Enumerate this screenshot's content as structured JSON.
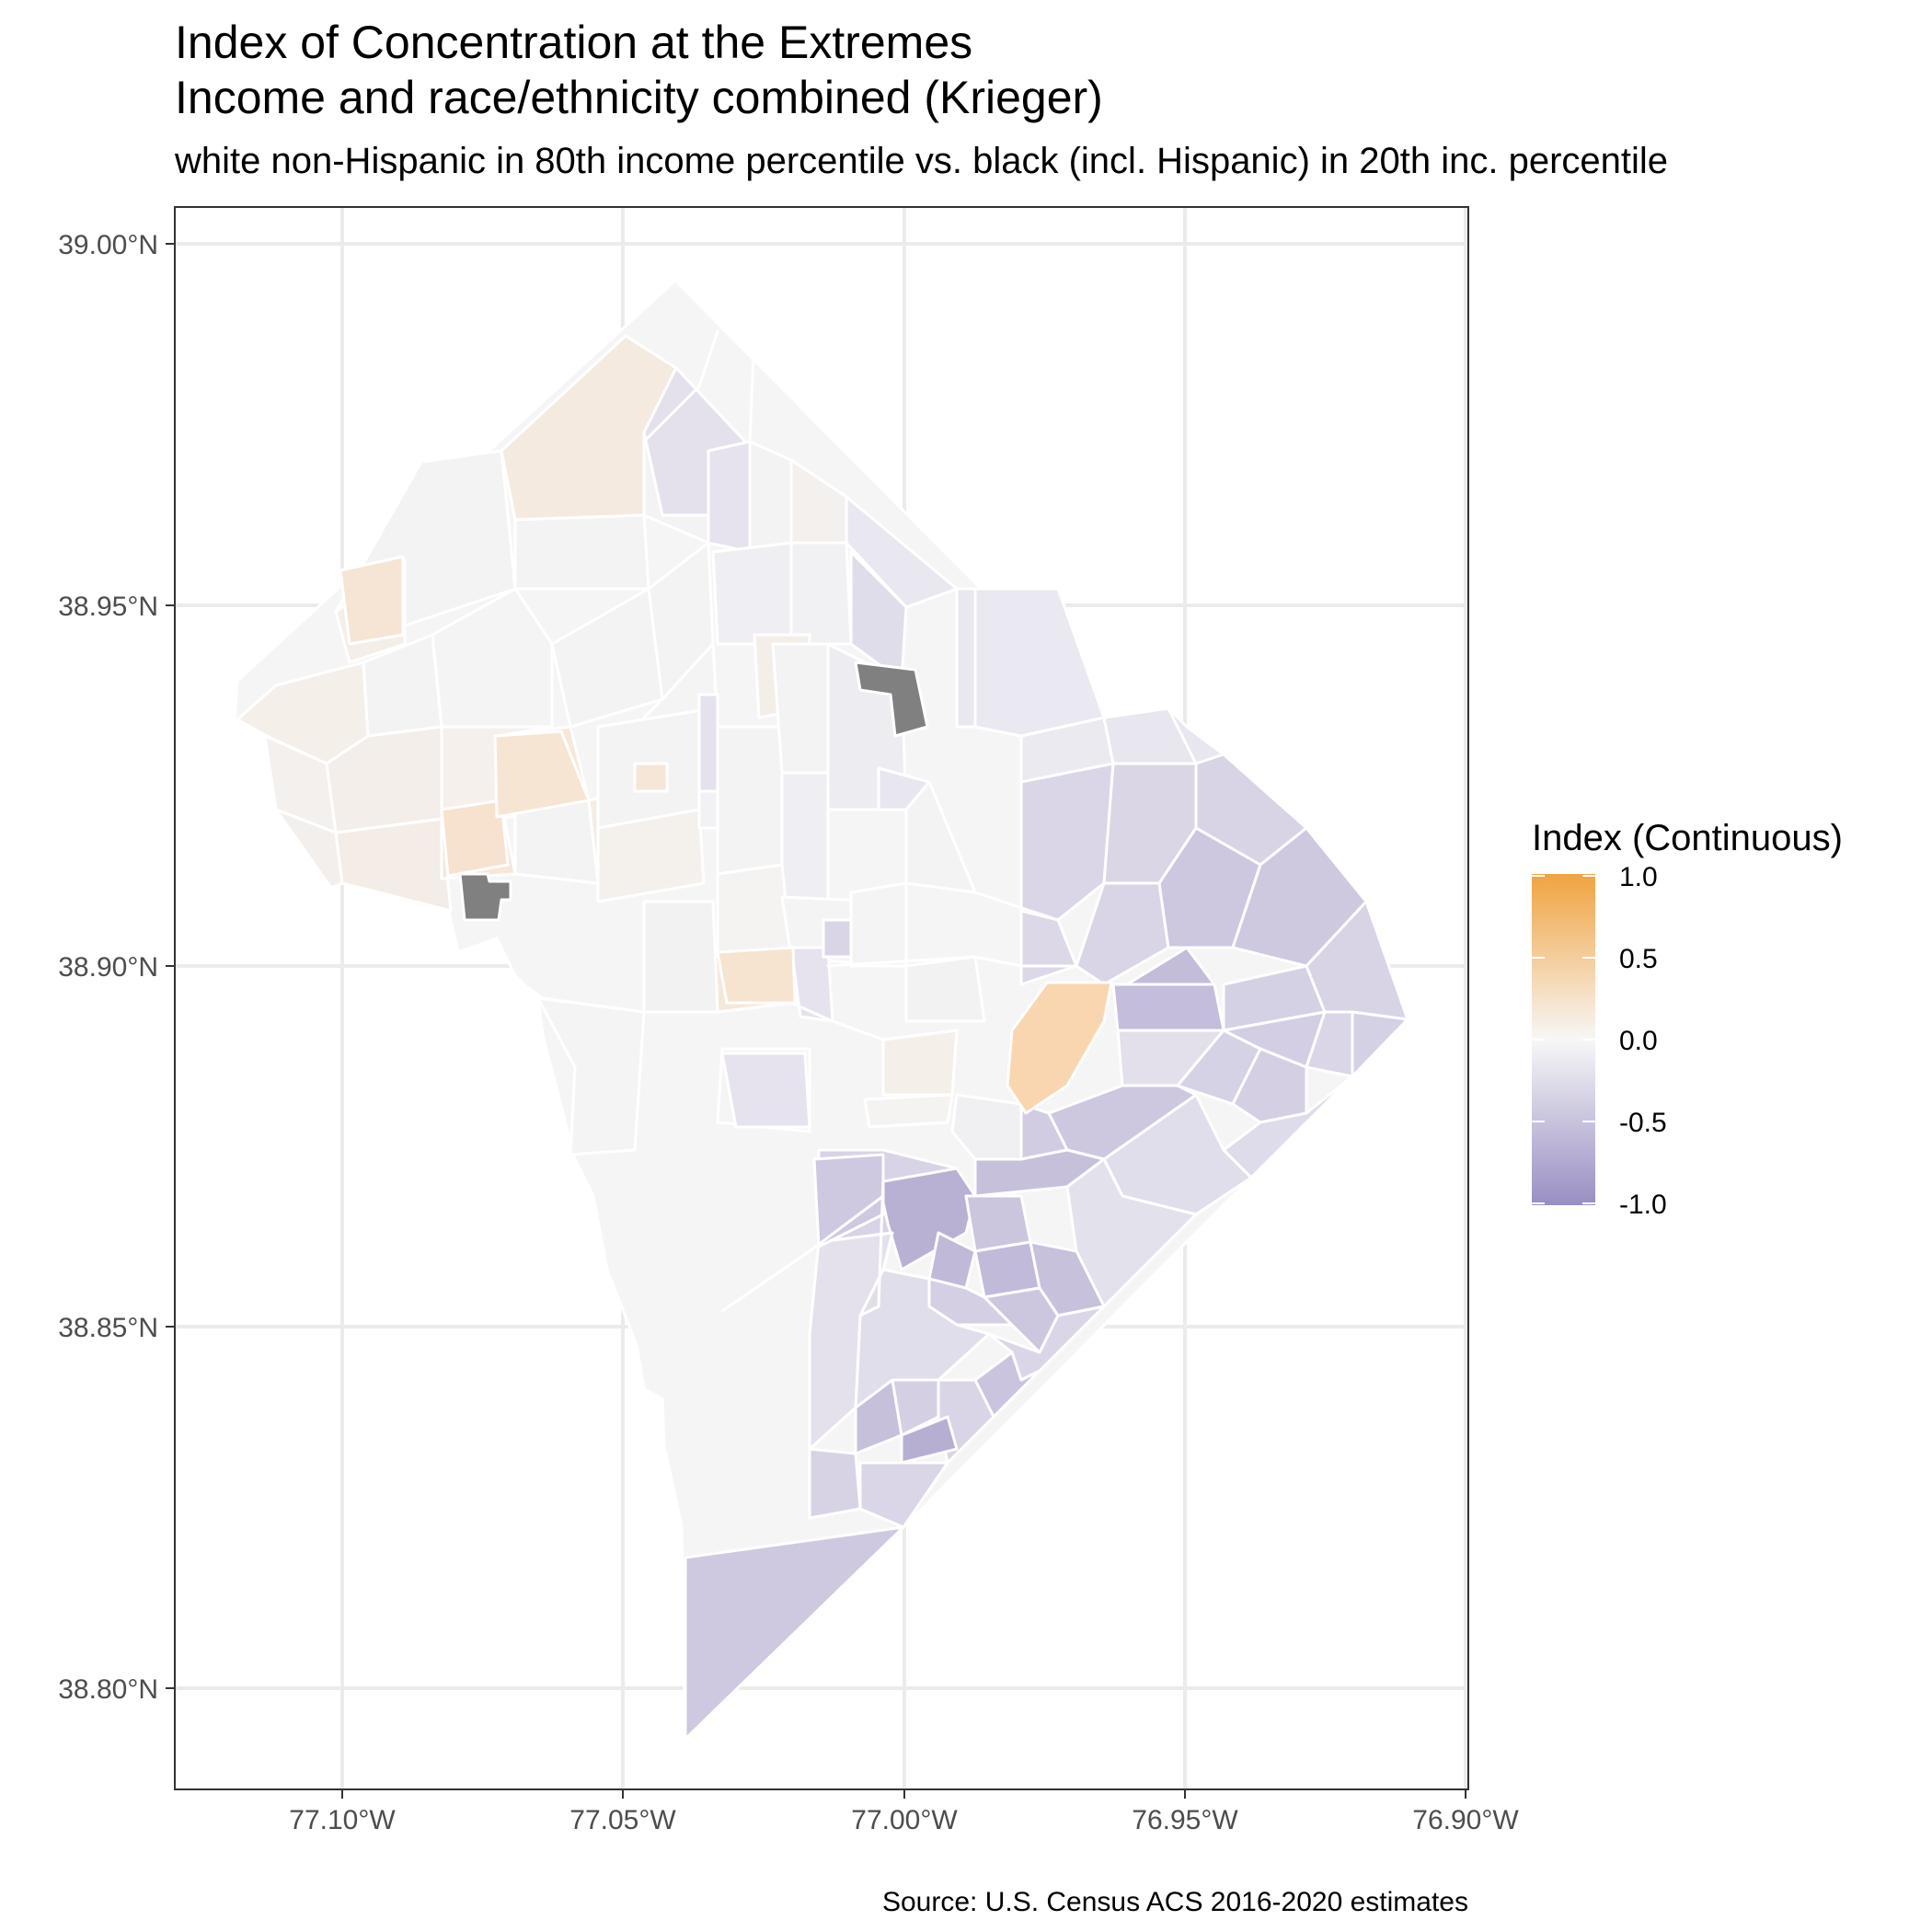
{
  "header": {
    "title_line1": "Index of Concentration at the Extremes",
    "title_line2": "Income and race/ethnicity combined (Krieger)",
    "subtitle": "white non-Hispanic in 80th income percentile vs. black (incl. Hispanic) in 20th inc. percentile"
  },
  "axes": {
    "y_ticks": [
      "39.00°N",
      "38.95°N",
      "38.90°N",
      "38.85°N",
      "38.80°N"
    ],
    "x_ticks": [
      "77.10°W",
      "77.05°W",
      "77.00°W",
      "76.95°W",
      "76.90°W"
    ]
  },
  "legend": {
    "title": "Index (Continuous)",
    "labels": [
      "1.0",
      "0.5",
      "0.0",
      "-0.5",
      "-1.0"
    ],
    "color_high": "#F1A340",
    "color_mid": "#F7F7F7",
    "color_low": "#998EC3",
    "na_color": "#808080"
  },
  "caption": "Source: U.S. Census ACS 2016-2020 estimates",
  "colors": {
    "panel_border": "#333333",
    "grid": "#EBEBEB",
    "tract_border": "#FFFFFF"
  }
}
